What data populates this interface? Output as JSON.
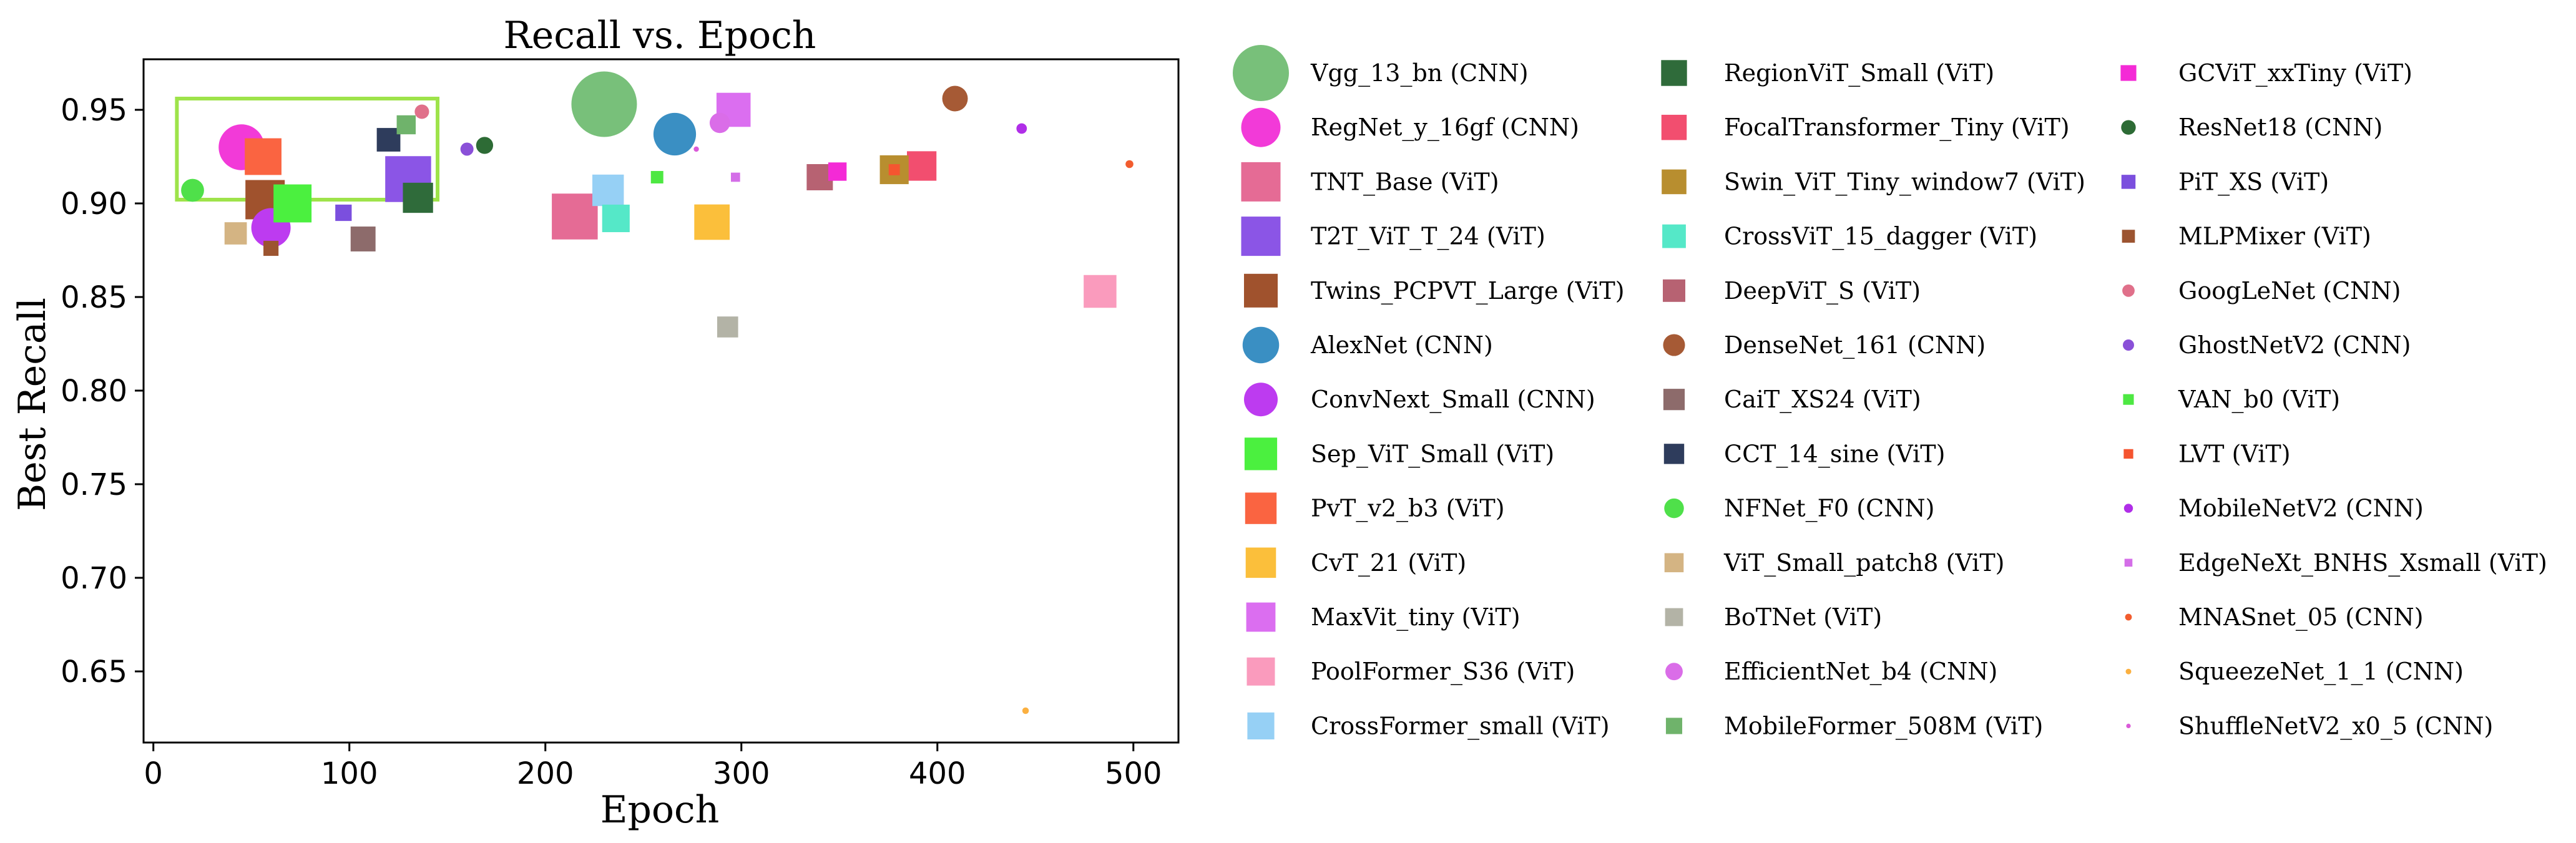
{
  "chart_data": {
    "type": "scatter",
    "title": "Recall vs. Epoch",
    "xlabel": "Epoch",
    "ylabel": "Best Recall",
    "xlim": [
      -5,
      523
    ],
    "ylim": [
      0.612,
      0.977
    ],
    "xticks": [
      0,
      100,
      200,
      300,
      400,
      500
    ],
    "yticks": [
      0.65,
      0.7,
      0.75,
      0.8,
      0.85,
      0.9,
      0.95
    ],
    "ytick_labels": [
      "0.65",
      "0.70",
      "0.75",
      "0.80",
      "0.85",
      "0.90",
      "0.95"
    ],
    "highlight_box": {
      "x": [
        12,
        145
      ],
      "y": [
        0.902,
        0.956
      ],
      "color": "#9ee34a"
    },
    "legend_placement": "outside-right",
    "series": [
      {
        "name": "Vgg_13_bn (CNN)",
        "marker": "circle",
        "color": "#78c07a",
        "size": 10,
        "x": 230,
        "y": 0.953
      },
      {
        "name": "RegNet_y_16gf (CNN)",
        "marker": "circle",
        "color": "#f23ad8",
        "size": 7,
        "x": 45,
        "y": 0.93
      },
      {
        "name": "TNT_Base (ViT)",
        "marker": "square",
        "color": "#e56b95",
        "size": 7,
        "x": 215,
        "y": 0.893
      },
      {
        "name": "T2T_ViT_T_24 (ViT)",
        "marker": "square",
        "color": "#8b55e6",
        "size": 7,
        "x": 130,
        "y": 0.913
      },
      {
        "name": "Twins_PCPVT_Large (ViT)",
        "marker": "square",
        "color": "#a0522d",
        "size": 6,
        "x": 57,
        "y": 0.902
      },
      {
        "name": "AlexNet (CNN)",
        "marker": "circle",
        "color": "#3a8fc3",
        "size": 6.5,
        "x": 266,
        "y": 0.937
      },
      {
        "name": "ConvNext_Small (CNN)",
        "marker": "circle",
        "color": "#bd3bf0",
        "size": 6,
        "x": 60,
        "y": 0.887
      },
      {
        "name": "Sep_ViT_Small (ViT)",
        "marker": "square",
        "color": "#4bf03f",
        "size": 5.8,
        "x": 71,
        "y": 0.9
      },
      {
        "name": "PvT_v2_b3 (ViT)",
        "marker": "square",
        "color": "#fa6441",
        "size": 5.6,
        "x": 56,
        "y": 0.925
      },
      {
        "name": "CvT_21 (ViT)",
        "marker": "square",
        "color": "#fbbf3b",
        "size": 5.4,
        "x": 285,
        "y": 0.89
      },
      {
        "name": "MaxVit_tiny (ViT)",
        "marker": "square",
        "color": "#db6ef0",
        "size": 5.2,
        "x": 296,
        "y": 0.95
      },
      {
        "name": "PoolFormer_S36 (ViT)",
        "marker": "square",
        "color": "#fa9bbd",
        "size": 5.0,
        "x": 483,
        "y": 0.853
      },
      {
        "name": "CrossFormer_small (ViT)",
        "marker": "square",
        "color": "#96d0f5",
        "size": 4.8,
        "x": 232,
        "y": 0.907
      },
      {
        "name": "RegionViT_Small (ViT)",
        "marker": "square",
        "color": "#2f6b3a",
        "size": 4.6,
        "x": 135,
        "y": 0.903
      },
      {
        "name": "FocalTransformer_Tiny (ViT)",
        "marker": "square",
        "color": "#f24e6f",
        "size": 4.5,
        "x": 392,
        "y": 0.92
      },
      {
        "name": "Swin_ViT_Tiny_window7 (ViT)",
        "marker": "square",
        "color": "#b88e2f",
        "size": 4.4,
        "x": 378,
        "y": 0.918
      },
      {
        "name": "CrossViT_15_dagger (ViT)",
        "marker": "square",
        "color": "#55e8c8",
        "size": 4.2,
        "x": 236,
        "y": 0.892
      },
      {
        "name": "DeepViT_S (ViT)",
        "marker": "square",
        "color": "#b76272",
        "size": 4.0,
        "x": 340,
        "y": 0.914
      },
      {
        "name": "DenseNet_161 (CNN)",
        "marker": "circle",
        "color": "#a65a35",
        "size": 3.9,
        "x": 409,
        "y": 0.956
      },
      {
        "name": "CaiT_XS24 (ViT)",
        "marker": "square",
        "color": "#8d6b6b",
        "size": 3.8,
        "x": 107,
        "y": 0.881
      },
      {
        "name": "CCT_14_sine (ViT)",
        "marker": "square",
        "color": "#2e3c5c",
        "size": 3.6,
        "x": 120,
        "y": 0.934
      },
      {
        "name": "NFNet_F0 (CNN)",
        "marker": "circle",
        "color": "#4fe04a",
        "size": 3.5,
        "x": 20,
        "y": 0.907
      },
      {
        "name": "ViT_Small_patch8 (ViT)",
        "marker": "square",
        "color": "#d4b483",
        "size": 3.4,
        "x": 42,
        "y": 0.884
      },
      {
        "name": "BoTNet (ViT)",
        "marker": "square",
        "color": "#b3b3a6",
        "size": 3.2,
        "x": 293,
        "y": 0.834
      },
      {
        "name": "EfficientNet_b4 (CNN)",
        "marker": "circle",
        "color": "#da6de8",
        "size": 3.1,
        "x": 289,
        "y": 0.943
      },
      {
        "name": "MobileFormer_508M (ViT)",
        "marker": "square",
        "color": "#6fb36b",
        "size": 2.9,
        "x": 129,
        "y": 0.942
      },
      {
        "name": "GCViT_xxTiny (ViT)",
        "marker": "square",
        "color": "#f42ad6",
        "size": 2.8,
        "x": 349,
        "y": 0.917
      },
      {
        "name": "ResNet18 (CNN)",
        "marker": "circle",
        "color": "#2d6b35",
        "size": 2.6,
        "x": 169,
        "y": 0.931
      },
      {
        "name": "PiT_XS (ViT)",
        "marker": "square",
        "color": "#7b4fde",
        "size": 2.5,
        "x": 97,
        "y": 0.895
      },
      {
        "name": "MLPMixer (ViT)",
        "marker": "square",
        "color": "#9c5430",
        "size": 2.3,
        "x": 60,
        "y": 0.876
      },
      {
        "name": "GoogLeNet (CNN)",
        "marker": "circle",
        "color": "#e0708a",
        "size": 2.2,
        "x": 137,
        "y": 0.949
      },
      {
        "name": "GhostNetV2 (CNN)",
        "marker": "circle",
        "color": "#8a50d8",
        "size": 2.0,
        "x": 160,
        "y": 0.929
      },
      {
        "name": "VAN_b0 (ViT)",
        "marker": "square",
        "color": "#4de842",
        "size": 1.9,
        "x": 257,
        "y": 0.914
      },
      {
        "name": "LVT (ViT)",
        "marker": "square",
        "color": "#f55530",
        "size": 1.7,
        "x": 378,
        "y": 0.918
      },
      {
        "name": "MobileNetV2 (CNN)",
        "marker": "circle",
        "color": "#b02ee8",
        "size": 1.6,
        "x": 443,
        "y": 0.94
      },
      {
        "name": "EdgeNeXt_BNHS_Xsmall (ViT)",
        "marker": "square",
        "color": "#d46ee8",
        "size": 1.4,
        "x": 297,
        "y": 0.914
      },
      {
        "name": "MNASnet_05 (CNN)",
        "marker": "circle",
        "color": "#f25c2e",
        "size": 1.2,
        "x": 498,
        "y": 0.921
      },
      {
        "name": "SqueezeNet_1_1 (CNN)",
        "marker": "circle",
        "color": "#fbb040",
        "size": 1.0,
        "x": 445,
        "y": 0.629
      },
      {
        "name": "ShuffleNetV2_x0_5 (CNN)",
        "marker": "circle",
        "color": "#da5ad8",
        "size": 0.8,
        "x": 277,
        "y": 0.929
      }
    ]
  }
}
